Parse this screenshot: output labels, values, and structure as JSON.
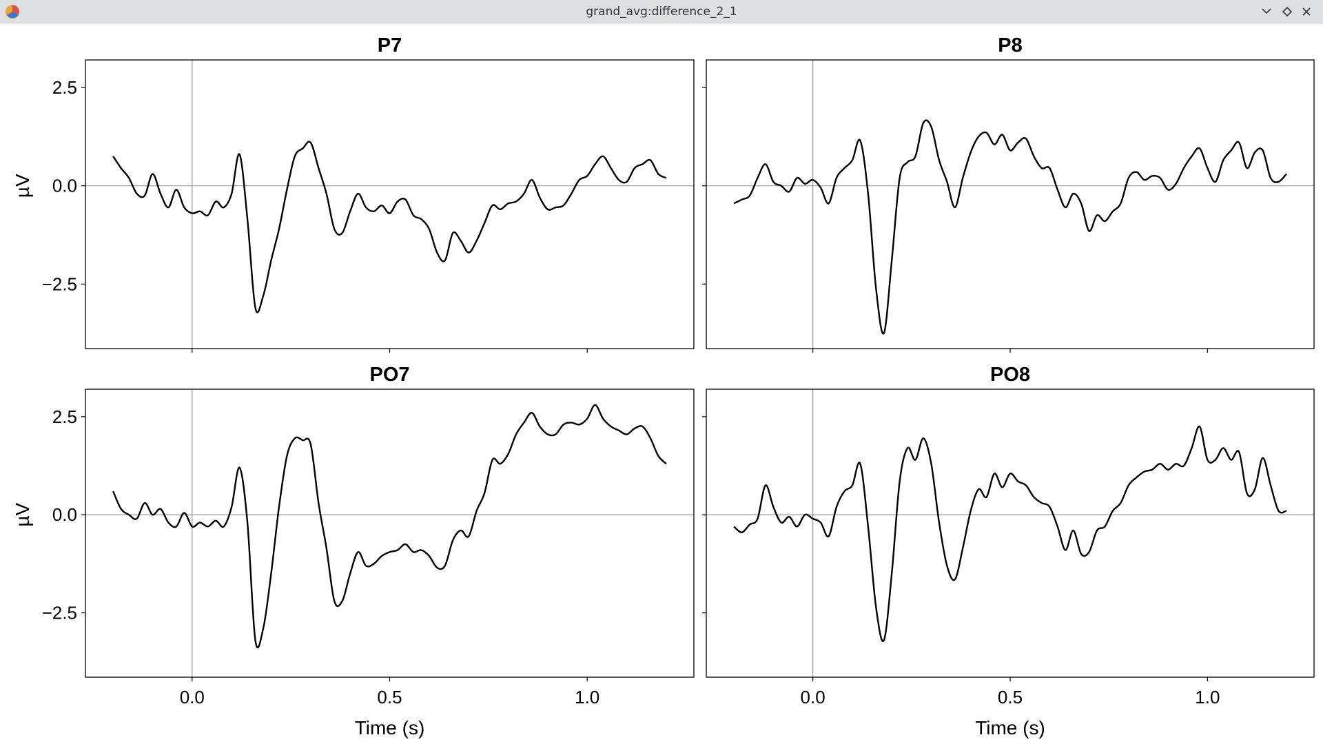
{
  "window_title": "grand_avg:difference_2_1",
  "chart_data": [
    {
      "type": "line",
      "title": "P7",
      "ylabel": "µV",
      "show_xtick_labels": false,
      "show_ytick_labels": true,
      "zero_lines": true,
      "color": "#000000",
      "xlim": [
        -0.27,
        1.27
      ],
      "ylim": [
        -4.14,
        3.2
      ],
      "xticks": [
        {
          "value": 0,
          "label": "0.0"
        },
        {
          "value": 0.5,
          "label": "0.5"
        },
        {
          "value": 1,
          "label": "1.0"
        }
      ],
      "yticks": [
        {
          "value": -2.5,
          "label": "−2.5"
        },
        {
          "value": 0,
          "label": "0.0"
        },
        {
          "value": 2.5,
          "label": "2.5"
        }
      ],
      "x": [
        -0.2,
        -0.18,
        -0.16,
        -0.14,
        -0.12,
        -0.1,
        -0.08,
        -0.06,
        -0.04,
        -0.02,
        0,
        0.02,
        0.04,
        0.06,
        0.08,
        0.1,
        0.12,
        0.14,
        0.16,
        0.18,
        0.2,
        0.22,
        0.24,
        0.26,
        0.28,
        0.3,
        0.32,
        0.34,
        0.36,
        0.38,
        0.4,
        0.42,
        0.44,
        0.46,
        0.48,
        0.5,
        0.52,
        0.54,
        0.56,
        0.58,
        0.6,
        0.62,
        0.64,
        0.66,
        0.68,
        0.7,
        0.72,
        0.74,
        0.76,
        0.78,
        0.8,
        0.82,
        0.84,
        0.86,
        0.88,
        0.9,
        0.92,
        0.94,
        0.96,
        0.98,
        1,
        1.02,
        1.04,
        1.06,
        1.08,
        1.1,
        1.12,
        1.14,
        1.16,
        1.18,
        1.2
      ],
      "values": [
        0.75,
        0.45,
        0.2,
        -0.2,
        -0.25,
        0.3,
        -0.2,
        -0.55,
        -0.1,
        -0.55,
        -0.7,
        -0.65,
        -0.75,
        -0.4,
        -0.55,
        -0.2,
        0.8,
        -0.85,
        -3.1,
        -2.8,
        -1.9,
        -1.1,
        -0.1,
        0.75,
        0.95,
        1.1,
        0.45,
        -0.2,
        -1.1,
        -1.2,
        -0.65,
        -0.2,
        -0.55,
        -0.65,
        -0.5,
        -0.7,
        -0.4,
        -0.35,
        -0.75,
        -0.85,
        -1.1,
        -1.7,
        -1.9,
        -1.2,
        -1.4,
        -1.7,
        -1.4,
        -0.95,
        -0.5,
        -0.6,
        -0.45,
        -0.4,
        -0.2,
        0.15,
        -0.3,
        -0.6,
        -0.55,
        -0.5,
        -0.2,
        0.15,
        0.25,
        0.55,
        0.75,
        0.45,
        0.15,
        0.1,
        0.45,
        0.55,
        0.65,
        0.3,
        0.2
      ]
    },
    {
      "type": "line",
      "title": "P8",
      "show_xtick_labels": false,
      "show_ytick_labels": false,
      "zero_lines": true,
      "color": "#000000",
      "xlim": [
        -0.27,
        1.27
      ],
      "ylim": [
        -4.14,
        3.2
      ],
      "xticks": [
        {
          "value": 0,
          "label": "0.0"
        },
        {
          "value": 0.5,
          "label": "0.5"
        },
        {
          "value": 1,
          "label": "1.0"
        }
      ],
      "yticks": [
        {
          "value": -2.5,
          "label": "−2.5"
        },
        {
          "value": 0,
          "label": "0.0"
        },
        {
          "value": 2.5,
          "label": "2.5"
        }
      ],
      "x": [
        -0.2,
        -0.18,
        -0.16,
        -0.14,
        -0.12,
        -0.1,
        -0.08,
        -0.06,
        -0.04,
        -0.02,
        0,
        0.02,
        0.04,
        0.06,
        0.08,
        0.1,
        0.12,
        0.14,
        0.16,
        0.18,
        0.2,
        0.22,
        0.24,
        0.26,
        0.28,
        0.3,
        0.32,
        0.34,
        0.36,
        0.38,
        0.4,
        0.42,
        0.44,
        0.46,
        0.48,
        0.5,
        0.52,
        0.54,
        0.56,
        0.58,
        0.6,
        0.62,
        0.64,
        0.66,
        0.68,
        0.7,
        0.72,
        0.74,
        0.76,
        0.78,
        0.8,
        0.82,
        0.84,
        0.86,
        0.88,
        0.9,
        0.92,
        0.94,
        0.96,
        0.98,
        1,
        1.02,
        1.04,
        1.06,
        1.08,
        1.1,
        1.12,
        1.14,
        1.16,
        1.18,
        1.2
      ],
      "values": [
        -0.45,
        -0.35,
        -0.25,
        0.2,
        0.55,
        0.1,
        0,
        -0.15,
        0.2,
        0.05,
        0.15,
        -0.05,
        -0.45,
        0.2,
        0.45,
        0.65,
        1.15,
        -0.2,
        -2.6,
        -3.75,
        -1.9,
        0.2,
        0.6,
        0.75,
        1.6,
        1.5,
        0.65,
        0.1,
        -0.55,
        0.2,
        0.85,
        1.25,
        1.35,
        1.05,
        1.3,
        0.9,
        1.1,
        1.2,
        0.75,
        0.45,
        0.45,
        -0.1,
        -0.55,
        -0.2,
        -0.45,
        -1.15,
        -0.75,
        -0.9,
        -0.65,
        -0.45,
        0.2,
        0.35,
        0.15,
        0.25,
        0.2,
        -0.1,
        0.05,
        0.45,
        0.75,
        0.95,
        0.45,
        0.1,
        0.65,
        0.9,
        1.1,
        0.45,
        0.85,
        0.9,
        0.2,
        0.1,
        0.3
      ]
    },
    {
      "type": "line",
      "title": "PO7",
      "xlabel": "Time (s)",
      "ylabel": "µV",
      "show_xtick_labels": true,
      "show_ytick_labels": true,
      "zero_lines": true,
      "color": "#000000",
      "xlim": [
        -0.27,
        1.27
      ],
      "ylim": [
        -4.14,
        3.2
      ],
      "xticks": [
        {
          "value": 0,
          "label": "0.0"
        },
        {
          "value": 0.5,
          "label": "0.5"
        },
        {
          "value": 1,
          "label": "1.0"
        }
      ],
      "yticks": [
        {
          "value": -2.5,
          "label": "−2.5"
        },
        {
          "value": 0,
          "label": "0.0"
        },
        {
          "value": 2.5,
          "label": "2.5"
        }
      ],
      "x": [
        -0.2,
        -0.18,
        -0.16,
        -0.14,
        -0.12,
        -0.1,
        -0.08,
        -0.06,
        -0.04,
        -0.02,
        0,
        0.02,
        0.04,
        0.06,
        0.08,
        0.1,
        0.12,
        0.14,
        0.16,
        0.18,
        0.2,
        0.22,
        0.24,
        0.26,
        0.28,
        0.3,
        0.32,
        0.34,
        0.36,
        0.38,
        0.4,
        0.42,
        0.44,
        0.46,
        0.48,
        0.5,
        0.52,
        0.54,
        0.56,
        0.58,
        0.6,
        0.62,
        0.64,
        0.66,
        0.68,
        0.7,
        0.72,
        0.74,
        0.76,
        0.78,
        0.8,
        0.82,
        0.84,
        0.86,
        0.88,
        0.9,
        0.92,
        0.94,
        0.96,
        0.98,
        1,
        1.02,
        1.04,
        1.06,
        1.08,
        1.1,
        1.12,
        1.14,
        1.16,
        1.18,
        1.2
      ],
      "values": [
        0.6,
        0.15,
        0,
        -0.1,
        0.3,
        0,
        0.15,
        -0.2,
        -0.3,
        0.05,
        -0.3,
        -0.2,
        -0.3,
        -0.15,
        -0.3,
        0.2,
        1.2,
        -0.2,
        -3.2,
        -2.9,
        -1.5,
        0.2,
        1.5,
        1.95,
        1.9,
        1.8,
        0.3,
        -0.85,
        -2.2,
        -2.2,
        -1.5,
        -0.95,
        -1.3,
        -1.25,
        -1.05,
        -0.95,
        -0.9,
        -0.75,
        -0.95,
        -0.9,
        -1.05,
        -1.35,
        -1.3,
        -0.65,
        -0.4,
        -0.55,
        0.1,
        0.55,
        1.4,
        1.3,
        1.55,
        2.05,
        2.35,
        2.6,
        2.25,
        2.05,
        2.05,
        2.3,
        2.35,
        2.3,
        2.45,
        2.8,
        2.45,
        2.25,
        2.15,
        2.05,
        2.2,
        2.25,
        1.95,
        1.5,
        1.3
      ]
    },
    {
      "type": "line",
      "title": "PO8",
      "xlabel": "Time (s)",
      "show_xtick_labels": true,
      "show_ytick_labels": false,
      "zero_lines": true,
      "color": "#000000",
      "xlim": [
        -0.27,
        1.27
      ],
      "ylim": [
        -4.14,
        3.2
      ],
      "xticks": [
        {
          "value": 0,
          "label": "0.0"
        },
        {
          "value": 0.5,
          "label": "0.5"
        },
        {
          "value": 1,
          "label": "1.0"
        }
      ],
      "yticks": [
        {
          "value": -2.5,
          "label": "−2.5"
        },
        {
          "value": 0,
          "label": "0.0"
        },
        {
          "value": 2.5,
          "label": "2.5"
        }
      ],
      "x": [
        -0.2,
        -0.18,
        -0.16,
        -0.14,
        -0.12,
        -0.1,
        -0.08,
        -0.06,
        -0.04,
        -0.02,
        0,
        0.02,
        0.04,
        0.06,
        0.08,
        0.1,
        0.12,
        0.14,
        0.16,
        0.18,
        0.2,
        0.22,
        0.24,
        0.26,
        0.28,
        0.3,
        0.32,
        0.34,
        0.36,
        0.38,
        0.4,
        0.42,
        0.44,
        0.46,
        0.48,
        0.5,
        0.52,
        0.54,
        0.56,
        0.58,
        0.6,
        0.62,
        0.64,
        0.66,
        0.68,
        0.7,
        0.72,
        0.74,
        0.76,
        0.78,
        0.8,
        0.82,
        0.84,
        0.86,
        0.88,
        0.9,
        0.92,
        0.94,
        0.96,
        0.98,
        1,
        1.02,
        1.04,
        1.06,
        1.08,
        1.1,
        1.12,
        1.14,
        1.16,
        1.18,
        1.2
      ],
      "values": [
        -0.3,
        -0.45,
        -0.25,
        -0.1,
        0.75,
        0.2,
        -0.2,
        -0.05,
        -0.3,
        0,
        -0.1,
        -0.2,
        -0.55,
        0.2,
        0.6,
        0.75,
        1.3,
        -0.3,
        -2.35,
        -3.2,
        -1.5,
        0.85,
        1.7,
        1.4,
        1.95,
        1.3,
        -0.2,
        -1.3,
        -1.65,
        -0.85,
        0.1,
        0.65,
        0.45,
        1.05,
        0.7,
        1.05,
        0.85,
        0.75,
        0.45,
        0.3,
        0.2,
        -0.3,
        -0.9,
        -0.4,
        -1,
        -0.95,
        -0.4,
        -0.3,
        0.1,
        0.3,
        0.75,
        0.95,
        1.1,
        1.15,
        1.3,
        1.15,
        1.3,
        1.25,
        1.7,
        2.25,
        1.4,
        1.4,
        1.7,
        1.4,
        1.6,
        0.55,
        0.65,
        1.45,
        0.75,
        0.1,
        0.1
      ]
    }
  ]
}
